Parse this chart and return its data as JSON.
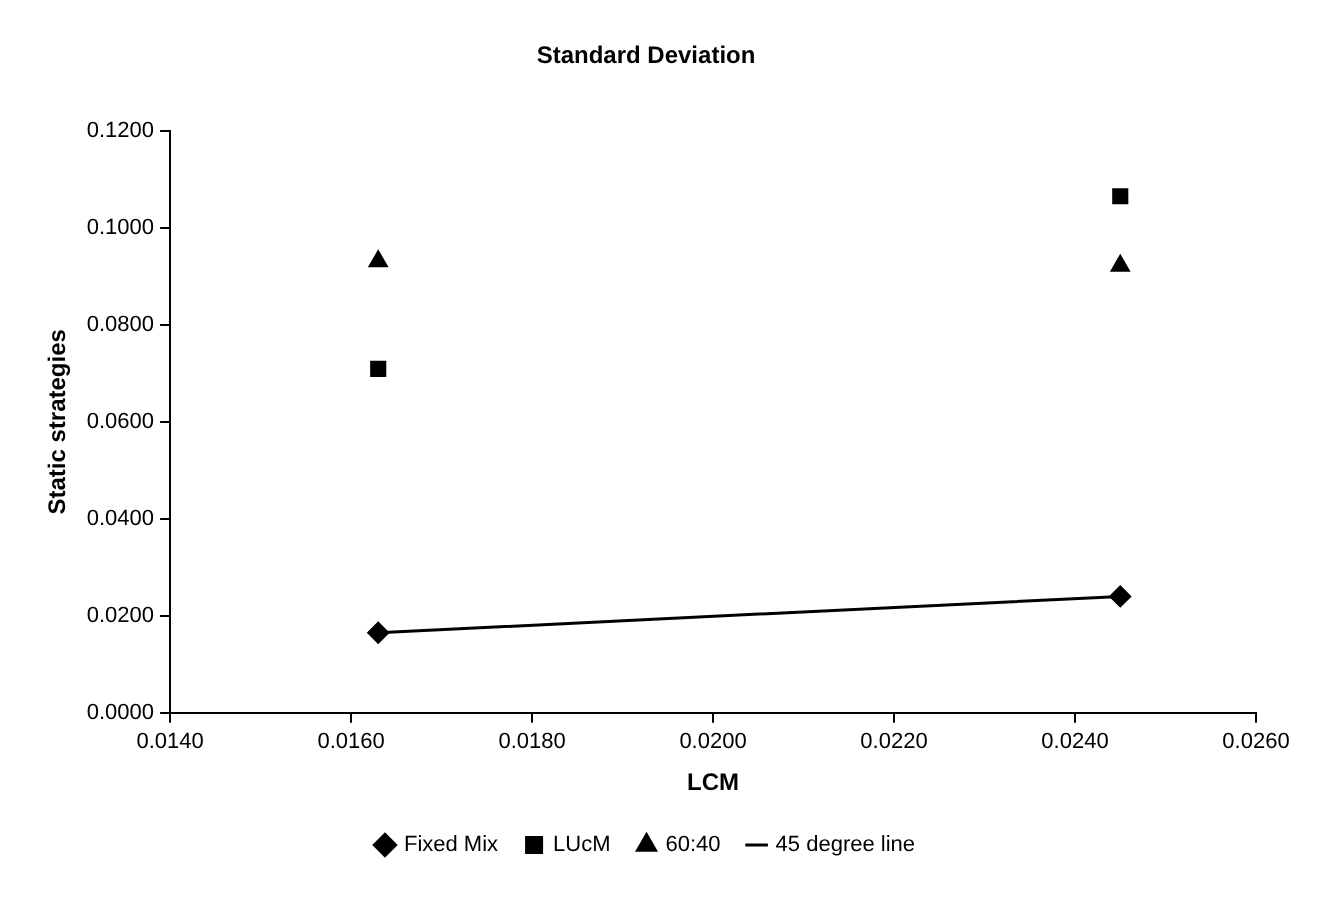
{
  "chart_data": {
    "type": "scatter",
    "title": "Standard Deviation",
    "xlabel": "LCM",
    "ylabel": "Static strategies",
    "x": [
      0.0163,
      0.0245
    ],
    "series": [
      {
        "name": "Fixed Mix",
        "color": "#000000",
        "marker": "diamond",
        "values": [
          0.0165,
          0.024
        ]
      },
      {
        "name": "LUcM",
        "color": "#000000",
        "marker": "square",
        "values": [
          0.0709,
          0.1065
        ]
      },
      {
        "name": "60:40",
        "color": "#000000",
        "marker": "triangle",
        "values": [
          0.0931,
          0.0922
        ]
      },
      {
        "name": "45 degree line",
        "type": "line",
        "color": "#000000",
        "marker": "none",
        "line_style": "solid",
        "values": [
          0.0165,
          0.024
        ]
      }
    ],
    "xlim": [
      0.014,
      0.026
    ],
    "xticks": [
      {
        "value": 0.014,
        "label": "0.0140"
      },
      {
        "value": 0.016,
        "label": "0.0160"
      },
      {
        "value": 0.018,
        "label": "0.0180"
      },
      {
        "value": 0.02,
        "label": "0.0200"
      },
      {
        "value": 0.022,
        "label": "0.0220"
      },
      {
        "value": 0.024,
        "label": "0.0240"
      },
      {
        "value": 0.026,
        "label": "0.0260"
      }
    ],
    "ylim": [
      0,
      0.12
    ],
    "yticks": [
      {
        "value": 0,
        "label": "0.0000"
      },
      {
        "value": 0.02,
        "label": "0.0200"
      },
      {
        "value": 0.04,
        "label": "0.0400"
      },
      {
        "value": 0.06,
        "label": "0.0600"
      },
      {
        "value": 0.08,
        "label": "0.0800"
      },
      {
        "value": 0.1,
        "label": "0.1000"
      },
      {
        "value": 0.12,
        "label": "0.1200"
      }
    ],
    "grid": false,
    "legend": "bottom"
  }
}
